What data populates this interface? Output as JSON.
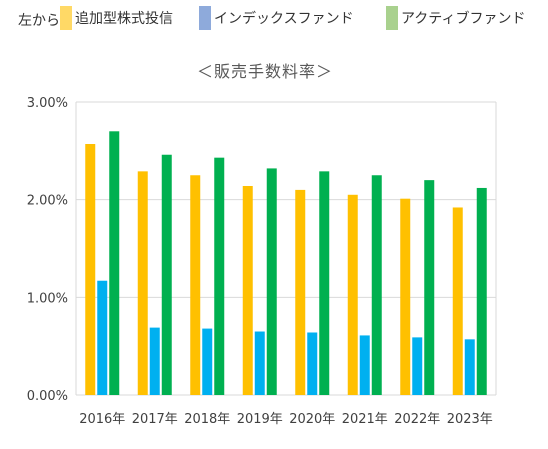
{
  "legend": {
    "lead": "左から",
    "items": [
      {
        "label": "追加型株式投信",
        "color": "#ffd966"
      },
      {
        "label": "インデックスファンド",
        "color": "#8eaadb"
      },
      {
        "label": "アクティブファンド",
        "color": "#a9d18e"
      }
    ]
  },
  "chart_data": {
    "type": "bar",
    "title": "＜販売手数料率＞",
    "categories": [
      "2016年",
      "2017年",
      "2018年",
      "2019年",
      "2020年",
      "2021年",
      "2022年",
      "2023年"
    ],
    "series": [
      {
        "name": "追加型株式投信",
        "color": "#ffc000",
        "values": [
          2.57,
          2.29,
          2.25,
          2.14,
          2.1,
          2.05,
          2.01,
          1.92
        ]
      },
      {
        "name": "インデックスファンド",
        "color": "#00b0f0",
        "values": [
          1.17,
          0.69,
          0.68,
          0.65,
          0.64,
          0.61,
          0.59,
          0.57
        ]
      },
      {
        "name": "アクティブファンド",
        "color": "#00b050",
        "values": [
          2.7,
          2.46,
          2.43,
          2.32,
          2.29,
          2.25,
          2.2,
          2.12
        ]
      }
    ],
    "yticks": [
      "0.00%",
      "1.00%",
      "2.00%",
      "3.00%"
    ],
    "ylim": [
      0,
      3
    ],
    "grid": true,
    "legend_position": "top"
  }
}
